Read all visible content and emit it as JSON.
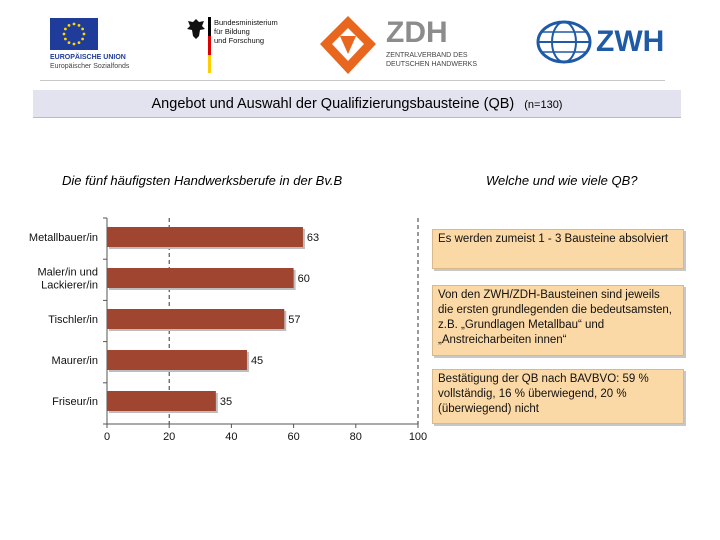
{
  "logos": {
    "eu_line1": "EUROPÄISCHE UNION",
    "eu_line2": "Europäischer Sozialfonds",
    "bmbf_lines": [
      "Bundesministerium",
      "für Bildung",
      "und Forschung"
    ],
    "zdh_title": "ZDH",
    "zdh_sub_lines": [
      "ZENTRALVERBAND DES",
      "DEUTSCHEN HANDWERKS"
    ],
    "zwh_title": "ZWH"
  },
  "header": {
    "title": "Angebot und Auswahl der Qualifizierungsbausteine (QB)",
    "sample": "(n=130)"
  },
  "left_heading": "Die fünf häufigsten Handwerksberufe in der Bv.B",
  "right_heading": "Welche und wie viele QB?",
  "chart_data": {
    "type": "bar",
    "orientation": "horizontal",
    "categories": [
      "Metallbauer/in",
      "Maler/in und Lackierer/in",
      "Tischler/in",
      "Maurer/in",
      "Friseur/in"
    ],
    "category_lines": [
      [
        "Metallbauer/in"
      ],
      [
        "Maler/in und",
        "Lackierer/in"
      ],
      [
        "Tischler/in"
      ],
      [
        "Maurer/in"
      ],
      [
        "Friseur/in"
      ]
    ],
    "values": [
      63,
      60,
      57,
      45,
      35
    ],
    "value_labels": [
      "63",
      "60",
      "57",
      "45",
      "35"
    ],
    "xlim": [
      0,
      100
    ],
    "x_ticks": [
      0,
      20,
      40,
      60,
      80,
      100
    ],
    "x_tick_labels": [
      "0",
      "20",
      "40",
      "60",
      "80",
      "100"
    ],
    "grid": "dashed vertical at 20 and 100",
    "bar_color": "#a0452f"
  },
  "boxes": [
    {
      "text": "Es werden zumeist 1 - 3 Bausteine absolviert"
    },
    {
      "text": "Von den ZWH/ZDH-Bausteinen sind jeweils die ersten grundlegenden die bedeutsamsten, z.B. „Grundlagen Metallbau“ und „Anstreicharbeiten innen“"
    },
    {
      "text": "Bestätigung der QB nach BAVBVO: 59 % vollständig, 16 % überwiegend, 20 % (überwiegend) nicht"
    }
  ],
  "colors": {
    "title_bg": "#e3e3ef",
    "box_bg": "#fbd9a6",
    "zwh_blue": "#1e5aa5",
    "zdh_orange": "#e8661e"
  }
}
